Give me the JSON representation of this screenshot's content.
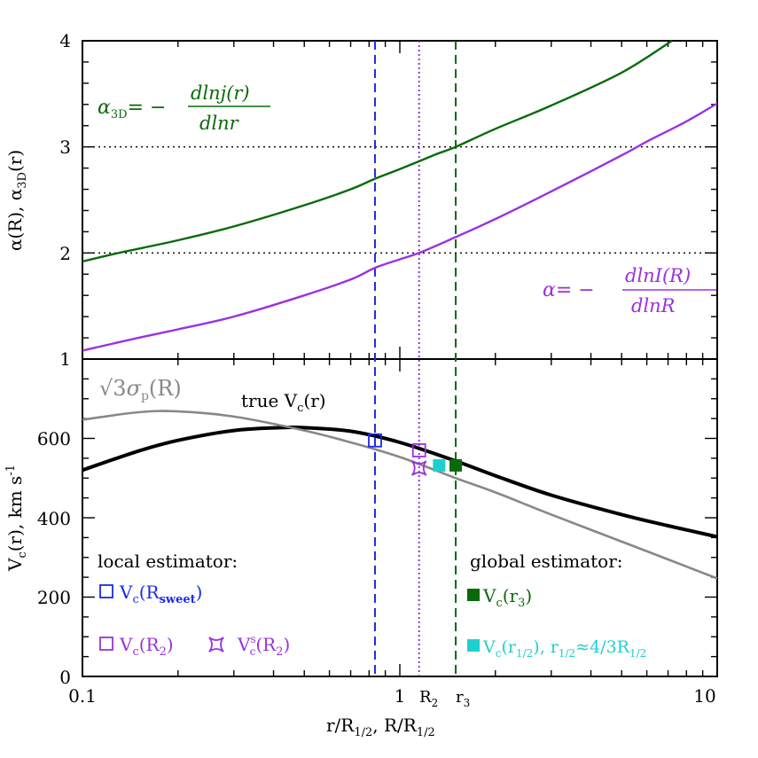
{
  "chart_data": [
    {
      "panel": "top",
      "type": "line",
      "x_scale": "log",
      "xlim": [
        0.1,
        10
      ],
      "ylim": [
        1,
        4
      ],
      "ylabel": "α(R), α3D(r)",
      "yticks": [
        "1",
        "2",
        "3",
        "4"
      ],
      "hlines": [
        2,
        3
      ],
      "series": [
        {
          "key": "alpha3d",
          "color": "#0a6a0a",
          "x": [
            0.1,
            0.13,
            0.2,
            0.3,
            0.5,
            0.7,
            0.835,
            1,
            1.3,
            1.5,
            2,
            3,
            5,
            7.2
          ],
          "y": [
            1.92,
            2.0,
            2.12,
            2.25,
            2.45,
            2.6,
            2.7,
            2.79,
            2.93,
            3.0,
            3.17,
            3.39,
            3.7,
            4.0
          ]
        },
        {
          "key": "alpha",
          "color": "#9932e0",
          "x": [
            0.1,
            0.15,
            0.2,
            0.3,
            0.5,
            0.7,
            0.835,
            1,
            1.15,
            1.5,
            2,
            3,
            5,
            6,
            8,
            10
          ],
          "y": [
            1.08,
            1.2,
            1.28,
            1.4,
            1.6,
            1.75,
            1.86,
            1.94,
            2.0,
            2.15,
            2.32,
            2.58,
            2.92,
            3.05,
            3.24,
            3.41
          ]
        }
      ],
      "annotations": {
        "alpha3d_lhs": "α",
        "alpha3d_sub": "3D",
        "alpha3d_eq": "= −",
        "alpha3d_num": "dlnj(r)",
        "alpha3d_den": "dlnr",
        "alpha_lhs": "α= −",
        "alpha_num": "dlnI(R)",
        "alpha_den": "dlnR"
      }
    },
    {
      "panel": "bottom",
      "type": "line",
      "x_scale": "log",
      "xlim": [
        0.1,
        10
      ],
      "ylim": [
        0,
        800
      ],
      "ylabel": "Vc(r), km s-1",
      "xlabel": "r/R1/2, R/R1/2",
      "xticks": [
        "0.1",
        "1",
        "10"
      ],
      "yticks": [
        "0",
        "200",
        "400",
        "600"
      ],
      "series": [
        {
          "key": "true_vc",
          "label": "true Vc(r)",
          "color": "#000000",
          "x": [
            0.1,
            0.15,
            0.2,
            0.3,
            0.42,
            0.5,
            0.7,
            1,
            1.5,
            2,
            3,
            5,
            7,
            10
          ],
          "y": [
            520,
            568,
            595,
            620,
            627,
            627,
            618,
            590,
            543,
            506,
            457,
            408,
            380,
            352
          ]
        },
        {
          "key": "sigma_p",
          "label": "√3σp(R)",
          "color": "#888888",
          "x": [
            0.1,
            0.15,
            0.2,
            0.3,
            0.5,
            0.7,
            1,
            1.5,
            2,
            3,
            5,
            7,
            10
          ],
          "y": [
            647,
            666,
            668,
            655,
            620,
            590,
            553,
            500,
            464,
            408,
            340,
            295,
            247
          ]
        }
      ],
      "points": [
        {
          "key": "vc_rsweet",
          "x": 0.835,
          "y": 595,
          "marker": "open-square",
          "color": "#1a2ae8"
        },
        {
          "key": "vc_r2",
          "x": 1.15,
          "y": 570,
          "marker": "open-square",
          "color": "#9932e0"
        },
        {
          "key": "vsc_r2",
          "x": 1.15,
          "y": 525,
          "marker": "open-star",
          "color": "#9932e0"
        },
        {
          "key": "vc_rhalf",
          "x": 1.33,
          "y": 532,
          "marker": "filled-square",
          "color": "#1fcfcf"
        },
        {
          "key": "vc_r3",
          "x": 1.5,
          "y": 532,
          "marker": "filled-square",
          "color": "#0a6a0a"
        }
      ],
      "legend": {
        "local_title": "local estimator:",
        "global_title": "global estimator:",
        "vc_rsweet": {
          "main": "V",
          "sub1": "c",
          "mid": "(R",
          "sub2": "sweet",
          "end": ")"
        },
        "vc_r2": {
          "main": "V",
          "sub1": "c",
          "mid": "(R",
          "sub2": "2",
          "end": ")"
        },
        "vsc_r2": {
          "main": "V",
          "sup": "s",
          "sub1": "c",
          "mid": "(R",
          "sub2": "2",
          "end": ")"
        },
        "vc_r3": {
          "main": "V",
          "sub1": "c",
          "mid": "(r",
          "sub2": "3",
          "end": ")"
        },
        "vc_rhalf": {
          "main": "V",
          "sub1": "c",
          "mid": "(r",
          "sub2": "1/2",
          "end": "), r",
          "sub3": "1/2",
          "tail": "≈4/3R",
          "sub4": "1/2"
        }
      }
    }
  ],
  "vlines": [
    {
      "key": "rsweet",
      "x": 0.835,
      "color": "#1a2ae8",
      "style": "dashed"
    },
    {
      "key": "r2",
      "x": 1.15,
      "color": "#9932e0",
      "style": "dotted"
    },
    {
      "key": "r3",
      "x": 1.5,
      "color": "#0a6a0a",
      "style": "dashed"
    }
  ],
  "xaxis_labels": {
    "t01": "0.1",
    "t1": "1",
    "t10": "10",
    "R2_main": "R",
    "R2_sub": "2",
    "r3_main": "r",
    "r3_sub": "3",
    "xlabel_a": "r/R",
    "xlabel_sub1": "1/2",
    "xlabel_b": ", R/R",
    "xlabel_sub2": "1/2"
  },
  "ylabels": {
    "top_a": "α(R), α",
    "top_sub": "3D",
    "top_b": "(r)",
    "bottom_a": "V",
    "bottom_sub": "c",
    "bottom_b": "(r), km s",
    "bottom_sup": "-1"
  },
  "curve_labels": {
    "sigma_sqrt": "√3",
    "sigma_main": "σ",
    "sigma_sub": "p",
    "sigma_end": "(R)",
    "truevc_a": "true V",
    "truevc_sub": "c",
    "truevc_b": "(r)"
  }
}
